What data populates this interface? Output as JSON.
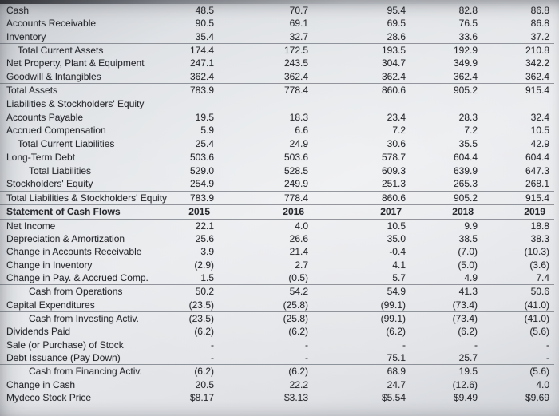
{
  "table": {
    "columns": [
      "2015",
      "2016",
      "2017",
      "2018",
      "2019"
    ],
    "rows": [
      {
        "label": "Cash",
        "indent": 0,
        "values": [
          "48.5",
          "70.7",
          "95.4",
          "82.8",
          "86.8"
        ]
      },
      {
        "label": "Accounts Receivable",
        "indent": 0,
        "values": [
          "90.5",
          "69.1",
          "69.5",
          "76.5",
          "86.8"
        ]
      },
      {
        "label": "Inventory",
        "indent": 0,
        "line_below": true,
        "values": [
          "35.4",
          "32.7",
          "28.6",
          "33.6",
          "37.2"
        ]
      },
      {
        "label": "Total Current Assets",
        "indent": 1,
        "values": [
          "174.4",
          "172.5",
          "193.5",
          "192.9",
          "210.8"
        ]
      },
      {
        "label": "Net Property, Plant & Equipment",
        "indent": 0,
        "values": [
          "247.1",
          "243.5",
          "304.7",
          "349.9",
          "342.2"
        ]
      },
      {
        "label": "Goodwill & Intangibles",
        "indent": 0,
        "line_below": true,
        "values": [
          "362.4",
          "362.4",
          "362.4",
          "362.4",
          "362.4"
        ]
      },
      {
        "label": "Total Assets",
        "indent": 0,
        "line_below": true,
        "values": [
          "783.9",
          "778.4",
          "860.6",
          "905.2",
          "915.4"
        ]
      },
      {
        "label": "Liabilities & Stockholders' Equity",
        "indent": 0,
        "values": [
          "",
          "",
          "",
          "",
          ""
        ]
      },
      {
        "label": "Accounts Payable",
        "indent": 0,
        "values": [
          "19.5",
          "18.3",
          "23.4",
          "28.3",
          "32.4"
        ]
      },
      {
        "label": "Accrued Compensation",
        "indent": 0,
        "line_below": true,
        "values": [
          "5.9",
          "6.6",
          "7.2",
          "7.2",
          "10.5"
        ]
      },
      {
        "label": "Total Current Liabilities",
        "indent": 1,
        "values": [
          "25.4",
          "24.9",
          "30.6",
          "35.5",
          "42.9"
        ]
      },
      {
        "label": "Long-Term Debt",
        "indent": 0,
        "line_below": true,
        "values": [
          "503.6",
          "503.6",
          "578.7",
          "604.4",
          "604.4"
        ]
      },
      {
        "label": "Total Liabilities",
        "indent": 2,
        "values": [
          "529.0",
          "528.5",
          "609.3",
          "639.9",
          "647.3"
        ]
      },
      {
        "label": "Stockholders' Equity",
        "indent": 0,
        "line_below": true,
        "values": [
          "254.9",
          "249.9",
          "251.3",
          "265.3",
          "268.1"
        ]
      },
      {
        "label": "Total Liabilities & Stockholders' Equity",
        "indent": 0,
        "line_below": true,
        "values": [
          "783.9",
          "778.4",
          "860.6",
          "905.2",
          "915.4"
        ]
      },
      {
        "label": "Statement of Cash Flows",
        "indent": 0,
        "bold": true,
        "header": true,
        "line_below": true,
        "values": [
          "2015",
          "2016",
          "2017",
          "2018",
          "2019"
        ]
      },
      {
        "label": "Net Income",
        "indent": 0,
        "values": [
          "22.1",
          "4.0",
          "10.5",
          "9.9",
          "18.8"
        ]
      },
      {
        "label": "Depreciation & Amortization",
        "indent": 0,
        "values": [
          "25.6",
          "26.6",
          "35.0",
          "38.5",
          "38.3"
        ]
      },
      {
        "label": "Change in Accounts Receivable",
        "indent": 0,
        "values": [
          "3.9",
          "21.4",
          "-0.4",
          "(7.0)",
          "(10.3)"
        ]
      },
      {
        "label": "Change in Inventory",
        "indent": 0,
        "values": [
          "(2.9)",
          "2.7",
          "4.1",
          "(5.0)",
          "(3.6)"
        ]
      },
      {
        "label": "Change in Pay. & Accrued Comp.",
        "indent": 0,
        "line_below": true,
        "values": [
          "1.5",
          "(0.5)",
          "5.7",
          "4.9",
          "7.4"
        ]
      },
      {
        "label": "Cash from Operations",
        "indent": 2,
        "values": [
          "50.2",
          "54.2",
          "54.9",
          "41.3",
          "50.6"
        ]
      },
      {
        "label": "Capital Expenditures",
        "indent": 0,
        "line_below": true,
        "values": [
          "(23.5)",
          "(25.8)",
          "(99.1)",
          "(73.4)",
          "(41.0)"
        ]
      },
      {
        "label": "Cash from Investing Activ.",
        "indent": 2,
        "values": [
          "(23.5)",
          "(25.8)",
          "(99.1)",
          "(73.4)",
          "(41.0)"
        ]
      },
      {
        "label": "Dividends Paid",
        "indent": 0,
        "values": [
          "(6.2)",
          "(6.2)",
          "(6.2)",
          "(6.2)",
          "(5.6)"
        ]
      },
      {
        "label": "Sale (or Purchase) of Stock",
        "indent": 0,
        "values": [
          "-",
          "-",
          "-",
          "-",
          "-"
        ]
      },
      {
        "label": "Debt Issuance (Pay Down)",
        "indent": 0,
        "line_below": true,
        "values": [
          "-",
          "-",
          "75.1",
          "25.7",
          "-"
        ]
      },
      {
        "label": "Cash from Financing Activ.",
        "indent": 2,
        "values": [
          "(6.2)",
          "(6.2)",
          "68.9",
          "19.5",
          "(5.6)"
        ]
      },
      {
        "label": "Change in Cash",
        "indent": 0,
        "values": [
          "20.5",
          "22.2",
          "24.7",
          "(12.6)",
          "4.0"
        ]
      },
      {
        "label": "Mydeco Stock Price",
        "indent": 0,
        "values": [
          "$8.17",
          "$3.13",
          "$5.54",
          "$9.49",
          "$9.69"
        ]
      }
    ]
  }
}
